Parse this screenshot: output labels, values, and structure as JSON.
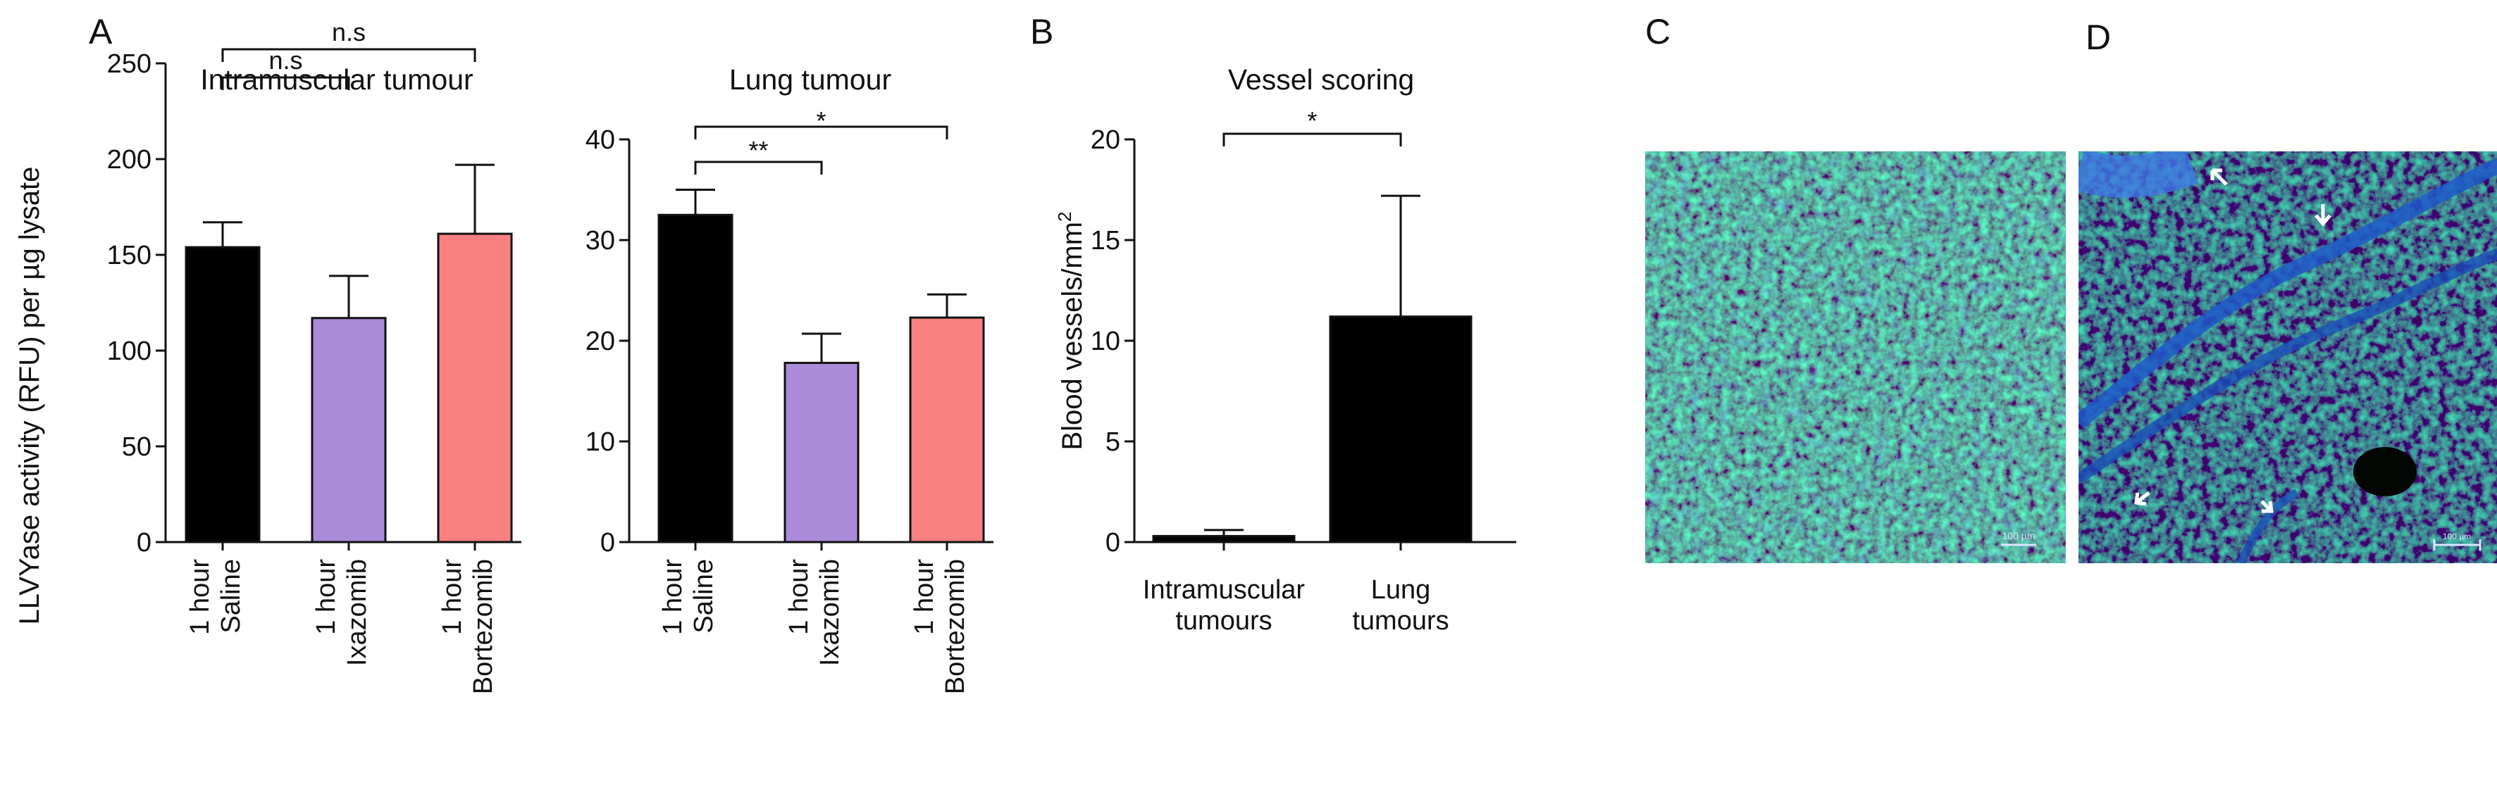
{
  "panels": {
    "A": "A",
    "B": "B",
    "C": "C",
    "D": "D"
  },
  "shared_ylabel": "LLVYase activity (RFU) per µg lysate",
  "colors": {
    "saline": "#000000",
    "ixazomib": "#AB8BD9",
    "bortezomib": "#F98080",
    "tissue_green": "#2E9A22",
    "tissue_blue": "#1E5FC8"
  },
  "micrographs": {
    "C": {
      "scale_text": "100 µm"
    },
    "D": {
      "scale_text": "100 µm",
      "arrow_icons": [
        "arrow-icon",
        "arrow-icon",
        "arrow-icon",
        "arrow-icon"
      ]
    }
  },
  "chart_data": [
    {
      "id": "intramuscular",
      "type": "bar",
      "title": "Intramuscular tumour",
      "categories": [
        [
          "1 hour",
          "Saline"
        ],
        [
          "1 hour",
          "Ixazomib"
        ],
        [
          "1 hour",
          "Bortezomib"
        ]
      ],
      "values": [
        154,
        117,
        161
      ],
      "errors": [
        13,
        22,
        36
      ],
      "colors": [
        "#000000",
        "#AB8BD9",
        "#F98080"
      ],
      "ylim": [
        0,
        250
      ],
      "yticks": [
        0,
        50,
        100,
        150,
        200,
        250
      ],
      "ylabel": "LLVYase activity (RFU) per µg lysate",
      "significance": [
        {
          "from": 0,
          "to": 1,
          "label": "n.s"
        },
        {
          "from": 0,
          "to": 2,
          "label": "n.s"
        }
      ]
    },
    {
      "id": "lung",
      "type": "bar",
      "title": "Lung tumour",
      "categories": [
        [
          "1 hour",
          "Saline"
        ],
        [
          "1 hour",
          "Ixazomib"
        ],
        [
          "1 hour",
          "Bortezomib"
        ]
      ],
      "values": [
        32.5,
        17.8,
        22.3
      ],
      "errors": [
        2.5,
        2.9,
        2.3
      ],
      "colors": [
        "#000000",
        "#AB8BD9",
        "#F98080"
      ],
      "ylim": [
        0,
        40
      ],
      "yticks": [
        0,
        10,
        20,
        30,
        40
      ],
      "ylabel": "",
      "significance": [
        {
          "from": 0,
          "to": 1,
          "label": "**"
        },
        {
          "from": 0,
          "to": 2,
          "label": "*"
        }
      ]
    },
    {
      "id": "vessels",
      "type": "bar",
      "title": "Vessel scoring",
      "categories": [
        [
          "Intramuscular",
          "tumours"
        ],
        [
          "Lung",
          "tumours"
        ]
      ],
      "values": [
        0.3,
        11.2
      ],
      "errors": [
        0.3,
        6.0
      ],
      "colors": [
        "#000000",
        "#000000"
      ],
      "ylim": [
        0,
        20
      ],
      "yticks": [
        0,
        5,
        10,
        15,
        20
      ],
      "ylabel": "Blood vessels/mm",
      "ylabel_sup": "2",
      "significance": [
        {
          "from": 0,
          "to": 1,
          "label": "*"
        }
      ]
    }
  ]
}
